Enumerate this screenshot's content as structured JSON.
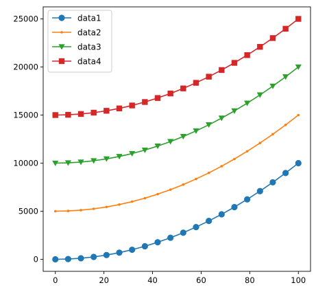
{
  "chart_data": {
    "type": "line",
    "title": "",
    "xlabel": "",
    "ylabel": "",
    "xlim": [
      -5,
      105
    ],
    "ylim": [
      -1250,
      26250
    ],
    "x_ticks": [
      0,
      20,
      40,
      60,
      80,
      100
    ],
    "y_ticks": [
      0,
      5000,
      10000,
      15000,
      20000,
      25000
    ],
    "grid": false,
    "legend_position": "top-left",
    "x": [
      0,
      5.263,
      10.526,
      15.789,
      21.053,
      26.316,
      31.579,
      36.842,
      42.105,
      47.368,
      52.632,
      57.895,
      63.158,
      68.421,
      73.684,
      78.947,
      84.211,
      89.474,
      94.737,
      100
    ],
    "series": [
      {
        "name": "data1",
        "color": "#1f77b4",
        "marker": "circle",
        "values": [
          0,
          27.7,
          110.8,
          249.3,
          443.2,
          692.5,
          997.2,
          1357.3,
          1772.9,
          2243.8,
          2770.1,
          3351.8,
          3988.9,
          4681.4,
          5429.4,
          6232.7,
          7091.4,
          8005.5,
          8975.1,
          10000
        ]
      },
      {
        "name": "data2",
        "color": "#ff7f0e",
        "marker": "point",
        "values": [
          5000,
          5027.7,
          5110.8,
          5249.3,
          5443.2,
          5692.5,
          5997.2,
          6357.3,
          6772.9,
          7243.8,
          7770.1,
          8351.8,
          8988.9,
          9681.4,
          10429.4,
          11232.7,
          12091.4,
          13005.5,
          13975.1,
          15000
        ]
      },
      {
        "name": "data3",
        "color": "#2ca02c",
        "marker": "triangle-down",
        "values": [
          10000,
          10027.7,
          10110.8,
          10249.3,
          10443.2,
          10692.5,
          10997.2,
          11357.3,
          11772.9,
          12243.8,
          12770.1,
          13351.8,
          13988.9,
          14681.4,
          15429.4,
          16232.7,
          17091.4,
          18005.5,
          18975.1,
          20000
        ]
      },
      {
        "name": "data4",
        "color": "#d62728",
        "marker": "square",
        "values": [
          15000,
          15027.7,
          15110.8,
          15249.3,
          15443.2,
          15692.5,
          15997.2,
          16357.3,
          16772.9,
          17243.8,
          17770.1,
          18351.8,
          18988.9,
          19681.4,
          20429.4,
          21232.7,
          22091.4,
          23005.5,
          23975.1,
          25000
        ]
      }
    ]
  }
}
